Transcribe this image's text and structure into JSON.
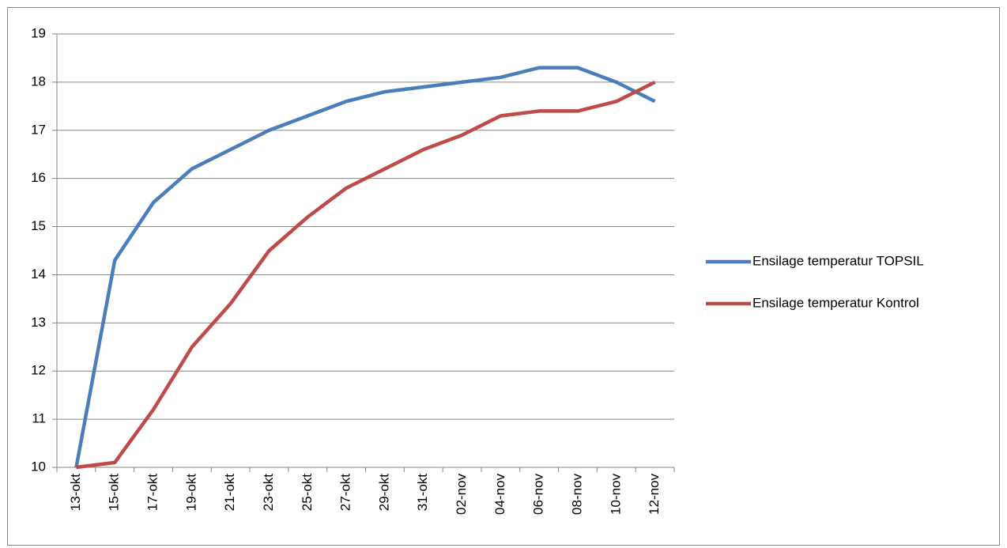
{
  "chart_data": {
    "type": "line",
    "categories": [
      "13-okt",
      "15-okt",
      "17-okt",
      "19-okt",
      "21-okt",
      "23-okt",
      "25-okt",
      "27-okt",
      "29-okt",
      "31-okt",
      "02-nov",
      "04-nov",
      "06-nov",
      "08-nov",
      "10-nov",
      "12-nov"
    ],
    "series": [
      {
        "name": "Ensilage temperatur TOPSIL",
        "color": "#4a7ebb",
        "values": [
          10,
          14.3,
          15.5,
          16.2,
          16.6,
          17.0,
          17.3,
          17.6,
          17.8,
          17.9,
          18.0,
          18.1,
          18.3,
          18.3,
          18.0,
          17.6
        ]
      },
      {
        "name": "Ensilage temperatur Kontrol",
        "color": "#be4b48",
        "values": [
          10,
          10.1,
          11.2,
          12.5,
          13.4,
          14.5,
          15.2,
          15.8,
          16.2,
          16.6,
          16.9,
          17.3,
          17.4,
          17.4,
          17.6,
          18.0
        ]
      }
    ],
    "ylim": [
      10,
      19
    ],
    "yticks": [
      10,
      11,
      12,
      13,
      14,
      15,
      16,
      17,
      18,
      19
    ],
    "grid": true,
    "legend": "right"
  }
}
